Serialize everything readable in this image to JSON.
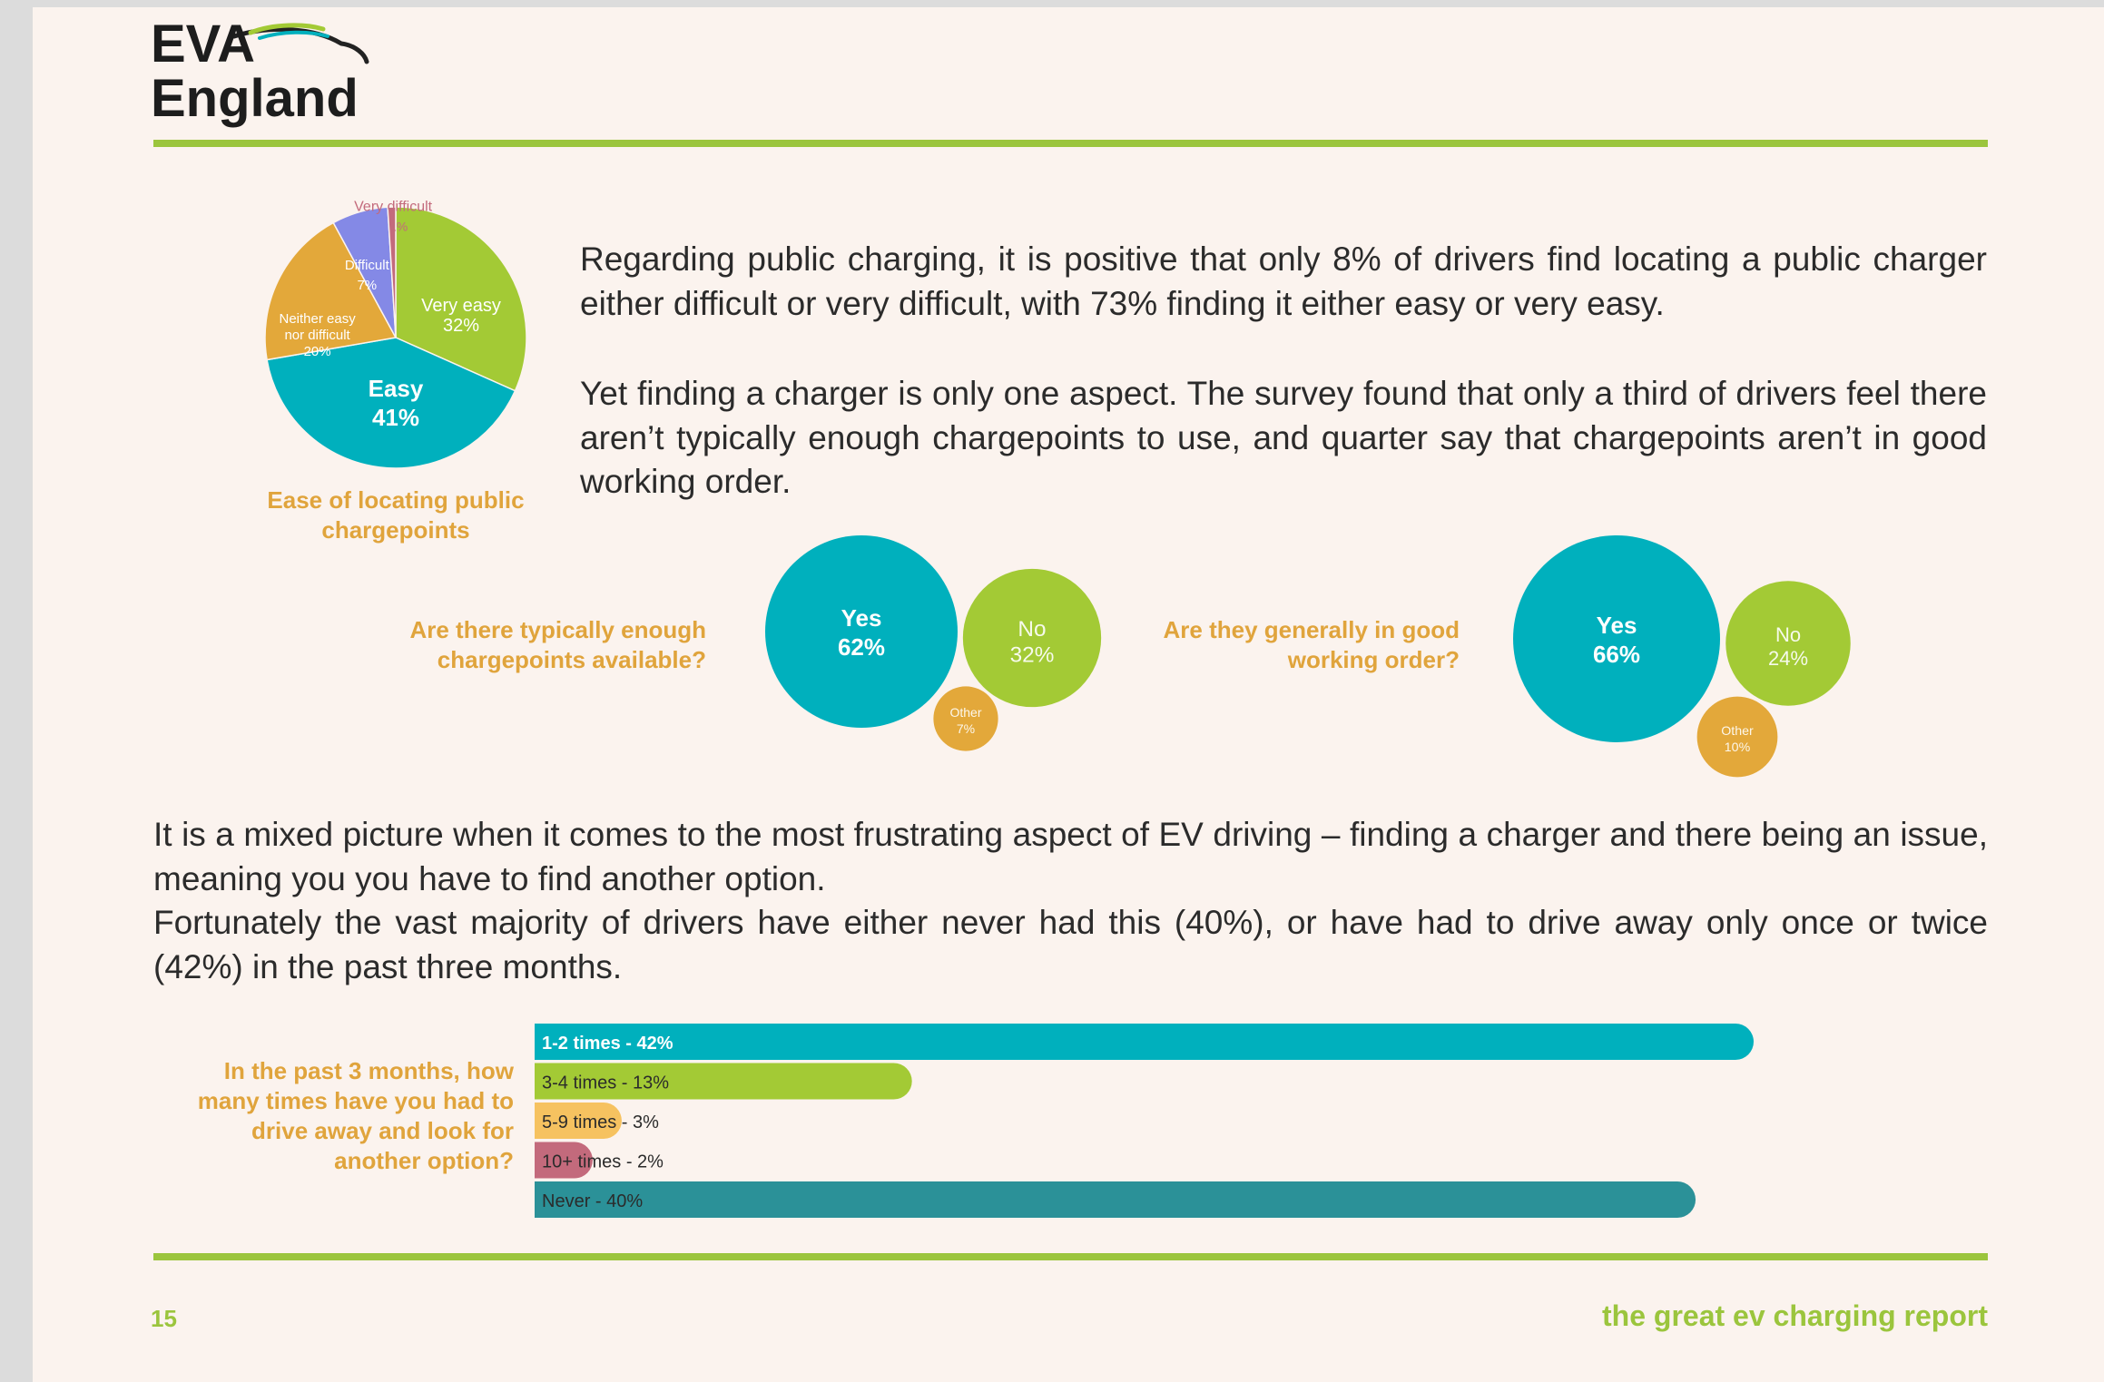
{
  "logo": {
    "line1": "EVA",
    "line2": "England"
  },
  "colors": {
    "teal": "#00b0bd",
    "green": "#a3ca35",
    "orange": "#e3a83a",
    "purple": "#8489e6",
    "rose": "#c36a7c",
    "yellow": "#f6c260",
    "dark_teal": "#2b9198",
    "caption": "#e0a43c",
    "rule": "#9bc53d"
  },
  "intro": {
    "para1": "Regarding public charging, it is positive that only 8% of drivers find locating a public charger either difficult or very difficult, with 73% finding it either easy or very easy.",
    "para2": "Yet finding a charger is only one aspect. The survey found that only a third of drivers feel there aren’t typically enough chargepoints to use, and quarter say that chargepoints aren’t in good working order."
  },
  "mid": {
    "para1": "It is a mixed picture when it comes to the most frustrating aspect of EV driving – finding a charger and there being an issue, meaning you you have to find another option.",
    "para2": "Fortunately the vast majority of drivers have either never had this (40%), or have had to drive away only once or twice (42%) in the past three months."
  },
  "captions": {
    "pie": "Ease of locating public chargepoints",
    "bubbles1": "Are there typically enough chargepoints available?",
    "bubbles2": "Are they generally in good working order?",
    "bars": "In the past 3 months, how many times have you had to drive away and look for another option?"
  },
  "chart_data": [
    {
      "type": "pie",
      "title": "Ease of locating public chargepoints",
      "slices": [
        {
          "label": "Very easy",
          "value": 32,
          "value_label": "32%",
          "color": "#a3ca35"
        },
        {
          "label": "Easy",
          "value": 41,
          "value_label": "41%",
          "color": "#00b0bd"
        },
        {
          "label": "Neither easy nor difficult",
          "value": 20,
          "value_label": "20%",
          "color": "#e3a83a"
        },
        {
          "label": "Difficult",
          "value": 7,
          "value_label": "7%",
          "color": "#8489e6"
        },
        {
          "label": "Very difficult",
          "value": 1,
          "value_label": "1%",
          "color": "#c36a7c"
        }
      ]
    },
    {
      "type": "bubble",
      "title": "Are there typically enough chargepoints available?",
      "items": [
        {
          "label": "Yes",
          "value": 62,
          "value_label": "62%",
          "color": "#00b0bd"
        },
        {
          "label": "No",
          "value": 32,
          "value_label": "32%",
          "color": "#a3ca35"
        },
        {
          "label": "Other",
          "value": 7,
          "value_label": "7%",
          "color": "#e3a83a"
        }
      ]
    },
    {
      "type": "bubble",
      "title": "Are they generally in good working order?",
      "items": [
        {
          "label": "Yes",
          "value": 66,
          "value_label": "66%",
          "color": "#00b0bd"
        },
        {
          "label": "No",
          "value": 24,
          "value_label": "24%",
          "color": "#a3ca35"
        },
        {
          "label": "Other",
          "value": 10,
          "value_label": "10%",
          "color": "#e3a83a"
        }
      ]
    },
    {
      "type": "bar",
      "orientation": "horizontal",
      "title": "In the past 3 months, how many times have you had to drive away and look for another option?",
      "categories": [
        "1-2 times - 42%",
        "3-4 times - 13%",
        "5-9 times - 3%",
        "10+ times - 2%",
        "Never - 40%"
      ],
      "values": [
        42,
        13,
        3,
        2,
        40
      ],
      "colors": [
        "#00b0bd",
        "#a3ca35",
        "#f6c260",
        "#c36a7c",
        "#2b9198"
      ],
      "xlim": [
        0,
        42
      ]
    }
  ],
  "footer": {
    "page_number": "15",
    "report_title": "the great ev charging report"
  }
}
